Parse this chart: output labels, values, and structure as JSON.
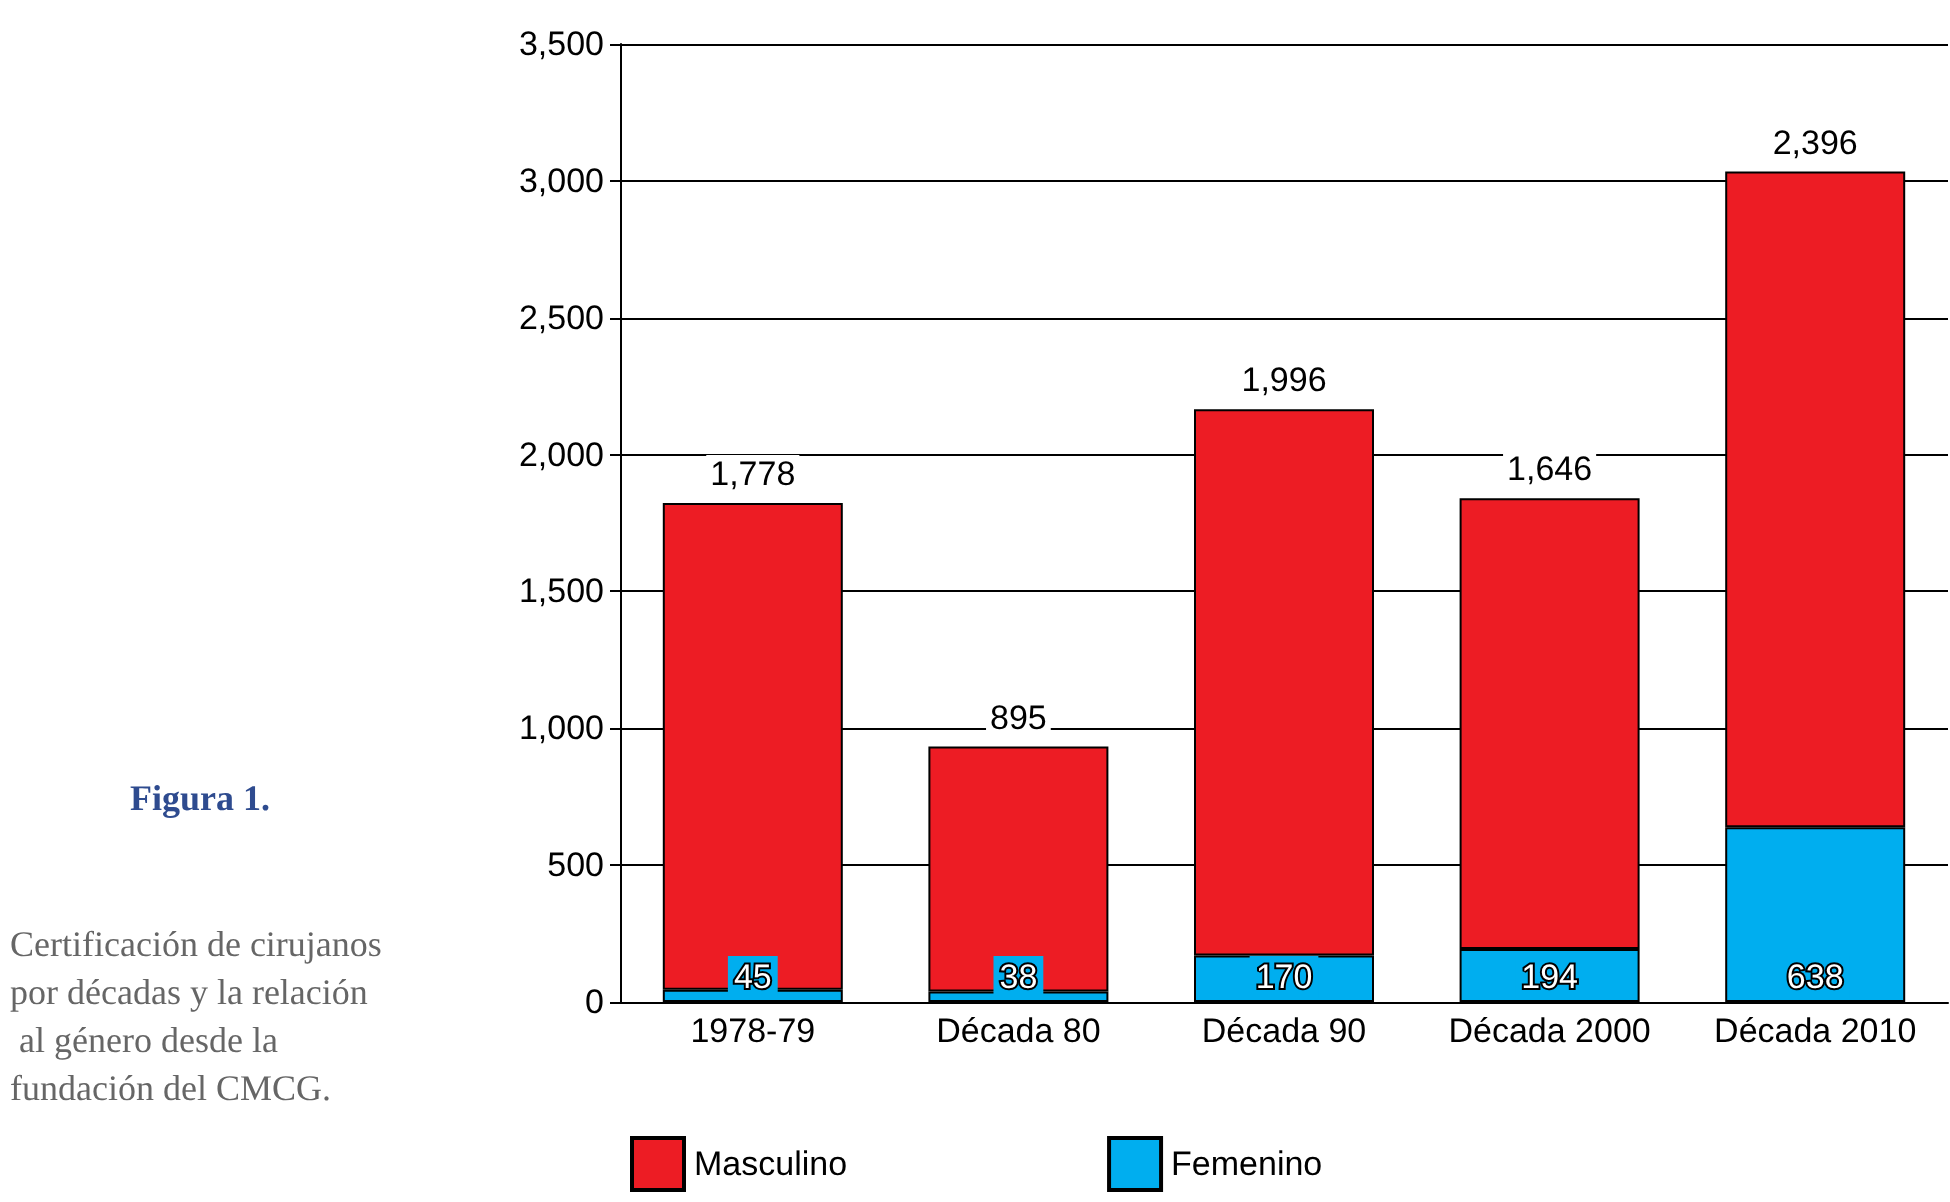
{
  "chart_data": {
    "type": "bar",
    "title": "Figura 1.",
    "annotations": [
      "Certificación de cirujanos por décadas y la relación al género desde la fundación del CMCG."
    ],
    "categories": [
      "1978-79",
      "Década 80",
      "Década 90",
      "Década 2000",
      "Década 2010"
    ],
    "stacked": true,
    "series": [
      {
        "name": "Femenino",
        "color": "#00aeef",
        "values": [
          45,
          38,
          170,
          194,
          638
        ],
        "value_labels": [
          "45",
          "38",
          "170",
          "194",
          "638"
        ]
      },
      {
        "name": "Masculino",
        "color": "#ed1c24",
        "values": [
          1778,
          895,
          1996,
          1646,
          2396
        ],
        "value_labels": [
          "1,778",
          "895",
          "1,996",
          "1,646",
          "2,396"
        ]
      }
    ],
    "ylim": [
      0,
      3500
    ],
    "yticks": [
      0,
      {
        "value": 500,
        "label": "500"
      },
      {
        "value": 1000,
        "label": "1,000"
      },
      {
        "value": 1500,
        "label": "1,500"
      },
      {
        "value": 2000,
        "label": "2,000"
      },
      {
        "value": 2500,
        "label": "2,500"
      },
      {
        "value": 3000,
        "label": "3,000"
      },
      {
        "value": 3500,
        "label": "3,500"
      }
    ],
    "grid": "y",
    "legend": "bottom"
  }
}
